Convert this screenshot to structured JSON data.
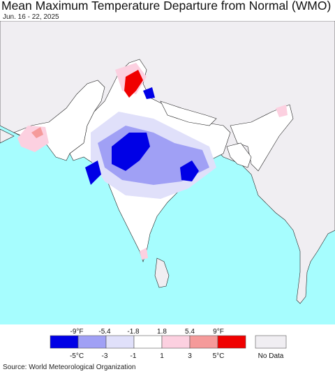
{
  "title": "Mean Maximum Temperature Departure from Normal (WMO)",
  "date_range": "Jun. 16 - 22, 2025",
  "legend": {
    "fahrenheit_ticks": [
      "-9°F",
      "-5.4",
      "-1.8",
      "1.8",
      "5.4",
      "9°F"
    ],
    "celsius_ticks": [
      "-5°C",
      "-3",
      "-1",
      "1",
      "3",
      "5°C"
    ],
    "bins": [
      {
        "color": "#0000e6"
      },
      {
        "color": "#a0a0f5"
      },
      {
        "color": "#e0e0fa"
      },
      {
        "color": "#ffffff"
      },
      {
        "color": "#fcd0e0"
      },
      {
        "color": "#f59a9a"
      },
      {
        "color": "#f00000"
      }
    ],
    "no_data_label": "No Data",
    "no_data_color": "#f0eef2"
  },
  "colors": {
    "ocean": "#a6fdfe",
    "land_no_data": "#f0eef2",
    "border": "#222222"
  },
  "source": "Source: World Meteorological Organization"
}
